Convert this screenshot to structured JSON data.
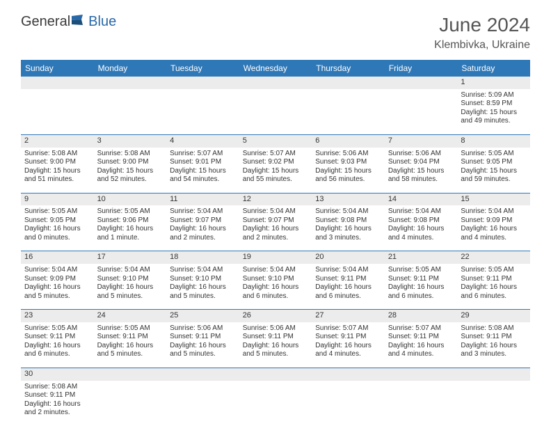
{
  "brand": {
    "part1": "General",
    "part2": "Blue"
  },
  "title": "June 2024",
  "location": "Klembivka, Ukraine",
  "colors": {
    "header_bg": "#2f78b7",
    "header_text": "#ffffff",
    "daynum_bg": "#ececec",
    "border": "#2f78b7",
    "text": "#333333",
    "logo_blue": "#2968a8"
  },
  "weekdays": [
    "Sunday",
    "Monday",
    "Tuesday",
    "Wednesday",
    "Thursday",
    "Friday",
    "Saturday"
  ],
  "weeks": [
    [
      null,
      null,
      null,
      null,
      null,
      null,
      {
        "n": "1",
        "sr": "5:09 AM",
        "ss": "8:59 PM",
        "dl": "15 hours and 49 minutes."
      }
    ],
    [
      {
        "n": "2",
        "sr": "5:08 AM",
        "ss": "9:00 PM",
        "dl": "15 hours and 51 minutes."
      },
      {
        "n": "3",
        "sr": "5:08 AM",
        "ss": "9:00 PM",
        "dl": "15 hours and 52 minutes."
      },
      {
        "n": "4",
        "sr": "5:07 AM",
        "ss": "9:01 PM",
        "dl": "15 hours and 54 minutes."
      },
      {
        "n": "5",
        "sr": "5:07 AM",
        "ss": "9:02 PM",
        "dl": "15 hours and 55 minutes."
      },
      {
        "n": "6",
        "sr": "5:06 AM",
        "ss": "9:03 PM",
        "dl": "15 hours and 56 minutes."
      },
      {
        "n": "7",
        "sr": "5:06 AM",
        "ss": "9:04 PM",
        "dl": "15 hours and 58 minutes."
      },
      {
        "n": "8",
        "sr": "5:05 AM",
        "ss": "9:05 PM",
        "dl": "15 hours and 59 minutes."
      }
    ],
    [
      {
        "n": "9",
        "sr": "5:05 AM",
        "ss": "9:05 PM",
        "dl": "16 hours and 0 minutes."
      },
      {
        "n": "10",
        "sr": "5:05 AM",
        "ss": "9:06 PM",
        "dl": "16 hours and 1 minute."
      },
      {
        "n": "11",
        "sr": "5:04 AM",
        "ss": "9:07 PM",
        "dl": "16 hours and 2 minutes."
      },
      {
        "n": "12",
        "sr": "5:04 AM",
        "ss": "9:07 PM",
        "dl": "16 hours and 2 minutes."
      },
      {
        "n": "13",
        "sr": "5:04 AM",
        "ss": "9:08 PM",
        "dl": "16 hours and 3 minutes."
      },
      {
        "n": "14",
        "sr": "5:04 AM",
        "ss": "9:08 PM",
        "dl": "16 hours and 4 minutes."
      },
      {
        "n": "15",
        "sr": "5:04 AM",
        "ss": "9:09 PM",
        "dl": "16 hours and 4 minutes."
      }
    ],
    [
      {
        "n": "16",
        "sr": "5:04 AM",
        "ss": "9:09 PM",
        "dl": "16 hours and 5 minutes."
      },
      {
        "n": "17",
        "sr": "5:04 AM",
        "ss": "9:10 PM",
        "dl": "16 hours and 5 minutes."
      },
      {
        "n": "18",
        "sr": "5:04 AM",
        "ss": "9:10 PM",
        "dl": "16 hours and 5 minutes."
      },
      {
        "n": "19",
        "sr": "5:04 AM",
        "ss": "9:10 PM",
        "dl": "16 hours and 6 minutes."
      },
      {
        "n": "20",
        "sr": "5:04 AM",
        "ss": "9:11 PM",
        "dl": "16 hours and 6 minutes."
      },
      {
        "n": "21",
        "sr": "5:05 AM",
        "ss": "9:11 PM",
        "dl": "16 hours and 6 minutes."
      },
      {
        "n": "22",
        "sr": "5:05 AM",
        "ss": "9:11 PM",
        "dl": "16 hours and 6 minutes."
      }
    ],
    [
      {
        "n": "23",
        "sr": "5:05 AM",
        "ss": "9:11 PM",
        "dl": "16 hours and 6 minutes."
      },
      {
        "n": "24",
        "sr": "5:05 AM",
        "ss": "9:11 PM",
        "dl": "16 hours and 5 minutes."
      },
      {
        "n": "25",
        "sr": "5:06 AM",
        "ss": "9:11 PM",
        "dl": "16 hours and 5 minutes."
      },
      {
        "n": "26",
        "sr": "5:06 AM",
        "ss": "9:11 PM",
        "dl": "16 hours and 5 minutes."
      },
      {
        "n": "27",
        "sr": "5:07 AM",
        "ss": "9:11 PM",
        "dl": "16 hours and 4 minutes."
      },
      {
        "n": "28",
        "sr": "5:07 AM",
        "ss": "9:11 PM",
        "dl": "16 hours and 4 minutes."
      },
      {
        "n": "29",
        "sr": "5:08 AM",
        "ss": "9:11 PM",
        "dl": "16 hours and 3 minutes."
      }
    ],
    [
      {
        "n": "30",
        "sr": "5:08 AM",
        "ss": "9:11 PM",
        "dl": "16 hours and 2 minutes."
      },
      null,
      null,
      null,
      null,
      null,
      null
    ]
  ],
  "labels": {
    "sunrise": "Sunrise:",
    "sunset": "Sunset:",
    "daylight": "Daylight:"
  }
}
